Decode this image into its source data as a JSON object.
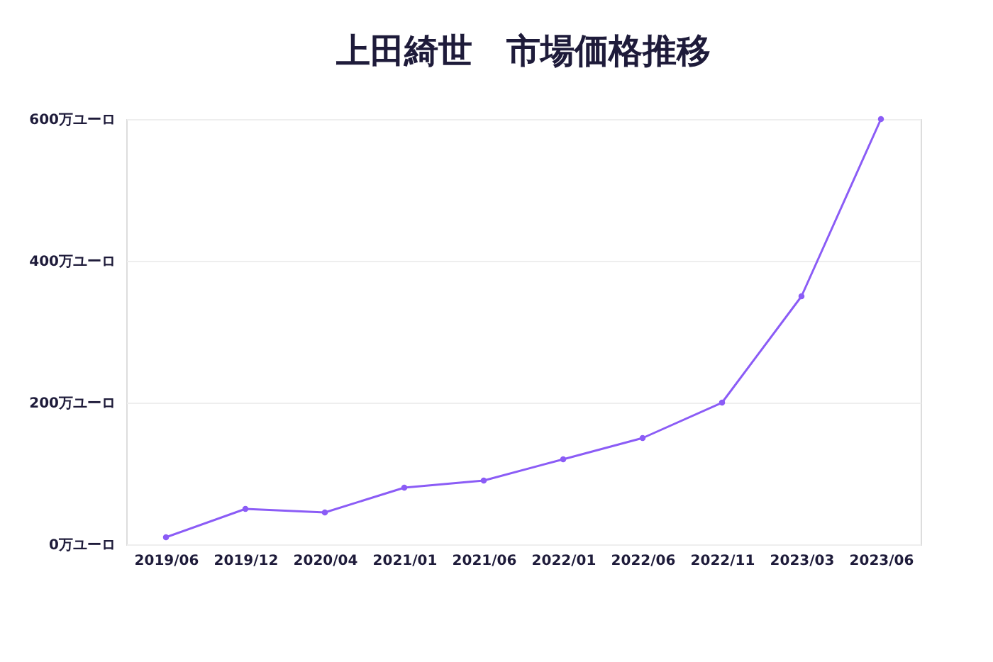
{
  "chart_data": {
    "type": "line",
    "title": "上田綺世　市場価格推移",
    "categories": [
      "2019/06",
      "2019/12",
      "2020/04",
      "2021/01",
      "2021/06",
      "2022/01",
      "2022/06",
      "2022/11",
      "2023/03",
      "2023/06"
    ],
    "series": [
      {
        "color": "#8b5cf6",
        "values": [
          10,
          50,
          45,
          80,
          90,
          120,
          150,
          200,
          350,
          600
        ]
      }
    ],
    "ylim": [
      0,
      600
    ],
    "yticks": [
      {
        "value": 0,
        "label": "0万ユーロ"
      },
      {
        "value": 200,
        "label": "200万ユーロ"
      },
      {
        "value": 400,
        "label": "400万ユーロ"
      },
      {
        "value": 600,
        "label": "600万ユーロ"
      }
    ],
    "grid": "y",
    "marker": "circle",
    "line_style": "solid"
  }
}
